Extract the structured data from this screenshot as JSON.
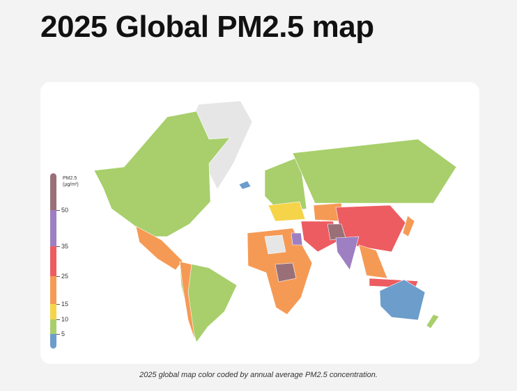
{
  "title": "2025 Global PM2.5 map",
  "caption": "2025 global map color coded by annual average PM2.5 concentration.",
  "legend": {
    "title_line1": "PM2.5",
    "title_line2": "(µg/m³)",
    "ticks": [
      "50",
      "35",
      "25",
      "15",
      "10",
      "5"
    ],
    "colors": {
      "above_50": "#9a7078",
      "35_50": "#9d7fc2",
      "25_35": "#ec5c60",
      "15_25": "#f59a55",
      "10_15": "#f6d44a",
      "5_10": "#a8cf6b",
      "below_5": "#6c9dcb",
      "no_data": "#e6e6e6"
    }
  }
}
